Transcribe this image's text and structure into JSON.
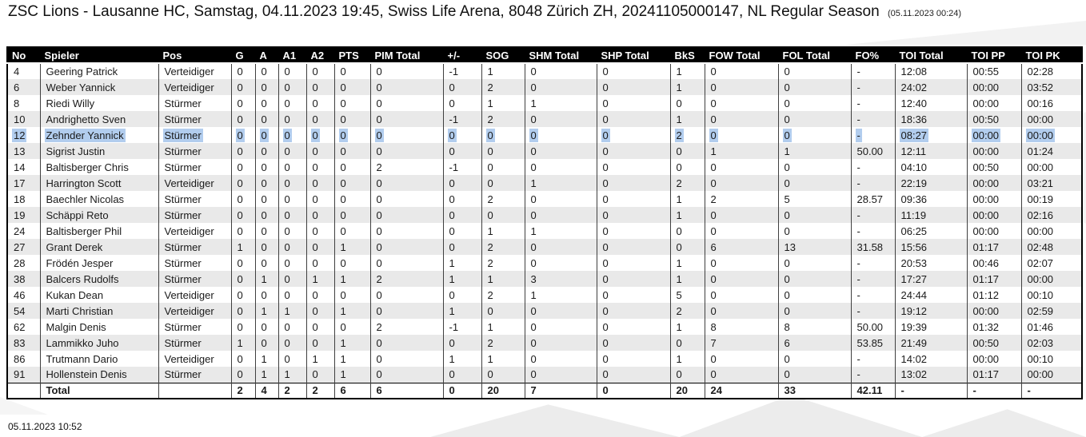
{
  "title": {
    "main": "ZSC Lions - Lausanne HC, Samstag, 04.11.2023 19:45, Swiss Life Arena, 8048 Zürich ZH, 20241105000147, NL Regular Season",
    "generated_timestamp": "(05.11.2023 00:24)"
  },
  "footer": {
    "printed_timestamp": "05.11.2023 10:52"
  },
  "colors": {
    "header_background": "#000000",
    "header_text": "#ffffff",
    "alt_row_background": "#e9e9e9",
    "selection_highlight": "#b2cdee"
  },
  "table": {
    "columns": [
      "No",
      "Spieler",
      "Pos",
      "G",
      "A",
      "A1",
      "A2",
      "PTS",
      "PIM Total",
      "+/-",
      "SOG",
      "SHM Total",
      "SHP Total",
      "BkS",
      "FOW Total",
      "FOL Total",
      "FO%",
      "TOI Total",
      "TOI PP",
      "TOI PK"
    ],
    "selected_player": "Zehnder Yannick",
    "rows": [
      [
        "4",
        "Geering Patrick",
        "Verteidiger",
        "0",
        "0",
        "0",
        "0",
        "0",
        "0",
        "-1",
        "1",
        "0",
        "0",
        "1",
        "0",
        "0",
        "-",
        "12:08",
        "00:55",
        "02:28"
      ],
      [
        "6",
        "Weber Yannick",
        "Verteidiger",
        "0",
        "0",
        "0",
        "0",
        "0",
        "0",
        "0",
        "2",
        "0",
        "0",
        "1",
        "0",
        "0",
        "-",
        "24:02",
        "00:00",
        "03:52"
      ],
      [
        "8",
        "Riedi Willy",
        "Stürmer",
        "0",
        "0",
        "0",
        "0",
        "0",
        "0",
        "0",
        "1",
        "1",
        "0",
        "0",
        "0",
        "0",
        "-",
        "12:40",
        "00:00",
        "00:16"
      ],
      [
        "10",
        "Andrighetto Sven",
        "Stürmer",
        "0",
        "0",
        "0",
        "0",
        "0",
        "0",
        "-1",
        "2",
        "0",
        "0",
        "1",
        "0",
        "0",
        "-",
        "18:36",
        "00:50",
        "00:00"
      ],
      [
        "12",
        "Zehnder Yannick",
        "Stürmer",
        "0",
        "0",
        "0",
        "0",
        "0",
        "0",
        "0",
        "0",
        "0",
        "0",
        "2",
        "0",
        "0",
        "-",
        "08:27",
        "00:00",
        "00:00"
      ],
      [
        "13",
        "Sigrist Justin",
        "Stürmer",
        "0",
        "0",
        "0",
        "0",
        "0",
        "0",
        "0",
        "0",
        "0",
        "0",
        "0",
        "1",
        "1",
        "50.00",
        "12:11",
        "00:00",
        "01:24"
      ],
      [
        "14",
        "Baltisberger Chris",
        "Stürmer",
        "0",
        "0",
        "0",
        "0",
        "0",
        "2",
        "-1",
        "0",
        "0",
        "0",
        "0",
        "0",
        "0",
        "-",
        "04:10",
        "00:50",
        "00:00"
      ],
      [
        "17",
        "Harrington Scott",
        "Verteidiger",
        "0",
        "0",
        "0",
        "0",
        "0",
        "0",
        "0",
        "0",
        "1",
        "0",
        "2",
        "0",
        "0",
        "-",
        "22:19",
        "00:00",
        "03:21"
      ],
      [
        "18",
        "Baechler Nicolas",
        "Stürmer",
        "0",
        "0",
        "0",
        "0",
        "0",
        "0",
        "0",
        "2",
        "0",
        "0",
        "1",
        "2",
        "5",
        "28.57",
        "09:36",
        "00:00",
        "00:19"
      ],
      [
        "19",
        "Schäppi Reto",
        "Stürmer",
        "0",
        "0",
        "0",
        "0",
        "0",
        "0",
        "0",
        "0",
        "0",
        "0",
        "1",
        "0",
        "0",
        "-",
        "11:19",
        "00:00",
        "02:16"
      ],
      [
        "24",
        "Baltisberger Phil",
        "Verteidiger",
        "0",
        "0",
        "0",
        "0",
        "0",
        "0",
        "0",
        "1",
        "1",
        "0",
        "0",
        "0",
        "0",
        "-",
        "06:25",
        "00:00",
        "00:00"
      ],
      [
        "27",
        "Grant Derek",
        "Stürmer",
        "1",
        "0",
        "0",
        "0",
        "1",
        "0",
        "0",
        "2",
        "0",
        "0",
        "0",
        "6",
        "13",
        "31.58",
        "15:56",
        "01:17",
        "02:48"
      ],
      [
        "28",
        "Frödén Jesper",
        "Stürmer",
        "0",
        "0",
        "0",
        "0",
        "0",
        "0",
        "1",
        "2",
        "0",
        "0",
        "1",
        "0",
        "0",
        "-",
        "20:53",
        "00:46",
        "02:07"
      ],
      [
        "38",
        "Balcers Rudolfs",
        "Stürmer",
        "0",
        "1",
        "0",
        "1",
        "1",
        "2",
        "1",
        "1",
        "3",
        "0",
        "1",
        "0",
        "0",
        "-",
        "17:27",
        "01:17",
        "00:00"
      ],
      [
        "46",
        "Kukan Dean",
        "Verteidiger",
        "0",
        "0",
        "0",
        "0",
        "0",
        "0",
        "0",
        "2",
        "1",
        "0",
        "5",
        "0",
        "0",
        "-",
        "24:44",
        "01:12",
        "00:10"
      ],
      [
        "54",
        "Marti Christian",
        "Verteidiger",
        "0",
        "1",
        "1",
        "0",
        "1",
        "0",
        "1",
        "0",
        "0",
        "0",
        "2",
        "0",
        "0",
        "-",
        "19:12",
        "00:00",
        "02:59"
      ],
      [
        "62",
        "Malgin Denis",
        "Stürmer",
        "0",
        "0",
        "0",
        "0",
        "0",
        "2",
        "-1",
        "1",
        "0",
        "0",
        "1",
        "8",
        "8",
        "50.00",
        "19:39",
        "01:32",
        "01:46"
      ],
      [
        "83",
        "Lammikko Juho",
        "Stürmer",
        "1",
        "0",
        "0",
        "0",
        "1",
        "0",
        "0",
        "2",
        "0",
        "0",
        "0",
        "7",
        "6",
        "53.85",
        "21:49",
        "00:50",
        "02:03"
      ],
      [
        "86",
        "Trutmann Dario",
        "Verteidiger",
        "0",
        "1",
        "0",
        "1",
        "1",
        "0",
        "1",
        "1",
        "0",
        "0",
        "1",
        "0",
        "0",
        "-",
        "14:02",
        "00:00",
        "00:10"
      ],
      [
        "91",
        "Hollenstein Denis",
        "Stürmer",
        "0",
        "1",
        "1",
        "0",
        "1",
        "0",
        "0",
        "0",
        "0",
        "0",
        "0",
        "0",
        "0",
        "-",
        "13:02",
        "01:17",
        "00:00"
      ]
    ],
    "total_row": [
      "",
      "Total",
      "",
      "2",
      "4",
      "2",
      "2",
      "6",
      "6",
      "0",
      "20",
      "7",
      "0",
      "20",
      "24",
      "33",
      "42.11",
      "-",
      "-",
      "-"
    ]
  }
}
